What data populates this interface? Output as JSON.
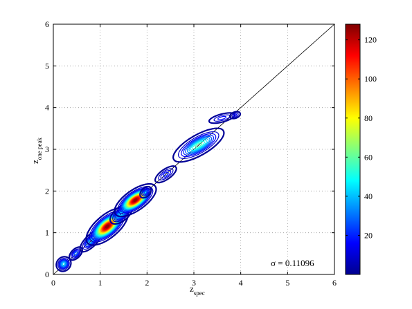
{
  "chart_data": {
    "type": "heatmap",
    "subtype": "density-contour",
    "x_axis": {
      "label_main": "z",
      "label_sub": "spec",
      "min": 0,
      "max": 6,
      "ticks": [
        "0",
        "1",
        "2",
        "3",
        "4",
        "5",
        "6"
      ]
    },
    "y_axis": {
      "label_main": "z",
      "label_sub": "one peak",
      "min": 0,
      "max": 6,
      "ticks": [
        "0",
        "1",
        "2",
        "3",
        "4",
        "5",
        "6"
      ]
    },
    "grid": true,
    "reference_line": {
      "from": [
        0,
        0
      ],
      "to": [
        6,
        6
      ]
    },
    "annotation": "σ = 0.11096",
    "colorbar": {
      "min": 0,
      "max": 128,
      "ticks": [
        "20",
        "40",
        "60",
        "80",
        "100",
        "120"
      ],
      "colormap": "jet"
    },
    "clusters": [
      {
        "x": 0.22,
        "y": 0.25,
        "sx": 0.07,
        "sy": 0.07,
        "angle": 45,
        "peak": 45
      },
      {
        "x": 0.48,
        "y": 0.5,
        "sx": 0.08,
        "sy": 0.05,
        "angle": 45,
        "peak": 30
      },
      {
        "x": 0.8,
        "y": 0.8,
        "sx": 0.13,
        "sy": 0.06,
        "angle": 45,
        "peak": 40
      },
      {
        "x": 1.15,
        "y": 1.15,
        "sx": 0.2,
        "sy": 0.1,
        "angle": 40,
        "peak": 128
      },
      {
        "x": 1.45,
        "y": 1.45,
        "sx": 0.12,
        "sy": 0.07,
        "angle": 40,
        "peak": 45
      },
      {
        "x": 1.75,
        "y": 1.78,
        "sx": 0.19,
        "sy": 0.09,
        "angle": 35,
        "peak": 128
      },
      {
        "x": 1.97,
        "y": 1.97,
        "sx": 0.07,
        "sy": 0.05,
        "angle": 45,
        "peak": 25
      },
      {
        "x": 2.4,
        "y": 2.4,
        "sx": 0.13,
        "sy": 0.06,
        "angle": 35,
        "peak": 22
      },
      {
        "x": 3.1,
        "y": 3.1,
        "sx": 0.25,
        "sy": 0.1,
        "angle": 30,
        "peak": 60
      },
      {
        "x": 3.6,
        "y": 3.75,
        "sx": 0.15,
        "sy": 0.05,
        "angle": 15,
        "peak": 20
      },
      {
        "x": 3.88,
        "y": 3.82,
        "sx": 0.06,
        "sy": 0.04,
        "angle": 20,
        "peak": 18
      }
    ]
  }
}
